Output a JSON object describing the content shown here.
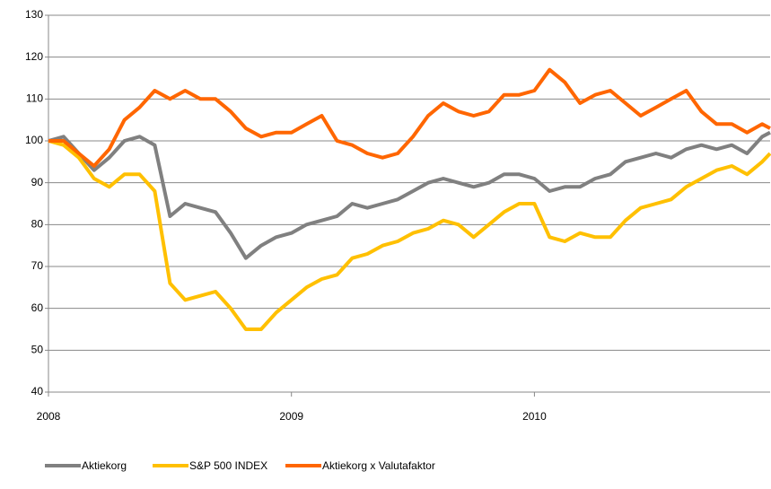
{
  "chart_data": {
    "type": "line",
    "x": [
      2008.0,
      2008.0625,
      2008.125,
      2008.1875,
      2008.25,
      2008.3125,
      2008.375,
      2008.4375,
      2008.5,
      2008.5625,
      2008.625,
      2008.6875,
      2008.75,
      2008.8125,
      2008.875,
      2008.9375,
      2009.0,
      2009.0625,
      2009.125,
      2009.1875,
      2009.25,
      2009.3125,
      2009.375,
      2009.4375,
      2009.5,
      2009.5625,
      2009.625,
      2009.6875,
      2009.75,
      2009.8125,
      2009.875,
      2009.9375,
      2010.0,
      2010.0625,
      2010.125,
      2010.1875,
      2010.25,
      2010.3125,
      2010.375,
      2010.4375,
      2010.5,
      2010.5625,
      2010.625,
      2010.6875,
      2010.75,
      2010.8125,
      2010.875,
      2010.9375,
      2010.97
    ],
    "series": [
      {
        "name": "Aktiekorg",
        "color": "#808080",
        "values": [
          100,
          101,
          97,
          93,
          96,
          100,
          101,
          99,
          82,
          85,
          84,
          83,
          78,
          72,
          75,
          77,
          78,
          80,
          81,
          82,
          85,
          84,
          85,
          86,
          88,
          90,
          91,
          90,
          89,
          90,
          92,
          92,
          91,
          88,
          89,
          89,
          91,
          92,
          95,
          96,
          97,
          96,
          98,
          99,
          98,
          99,
          97,
          101,
          102
        ]
      },
      {
        "name": "S&P 500 INDEX",
        "color": "#ffc000",
        "values": [
          100,
          99,
          96,
          91,
          89,
          92,
          92,
          88,
          66,
          62,
          63,
          64,
          60,
          55,
          55,
          59,
          62,
          65,
          67,
          68,
          72,
          73,
          75,
          76,
          78,
          79,
          81,
          80,
          77,
          80,
          83,
          85,
          85,
          77,
          76,
          78,
          77,
          77,
          81,
          84,
          85,
          86,
          89,
          91,
          93,
          94,
          92,
          95,
          97
        ]
      },
      {
        "name": "Aktiekorg x Valutafaktor",
        "color": "#ff6600",
        "values": [
          100,
          100,
          97,
          94,
          98,
          105,
          108,
          112,
          110,
          112,
          110,
          110,
          107,
          103,
          101,
          102,
          102,
          104,
          106,
          100,
          99,
          97,
          96,
          97,
          101,
          106,
          109,
          107,
          106,
          107,
          111,
          111,
          112,
          117,
          114,
          109,
          111,
          112,
          109,
          106,
          108,
          110,
          112,
          107,
          104,
          104,
          102,
          104,
          103
        ]
      }
    ],
    "xlim": [
      2008,
      2010.97
    ],
    "xticks": [
      2008,
      2009,
      2010
    ],
    "ylim": [
      40,
      130
    ],
    "yticks": [
      40,
      50,
      60,
      70,
      80,
      90,
      100,
      110,
      120,
      130
    ],
    "grid": true
  }
}
